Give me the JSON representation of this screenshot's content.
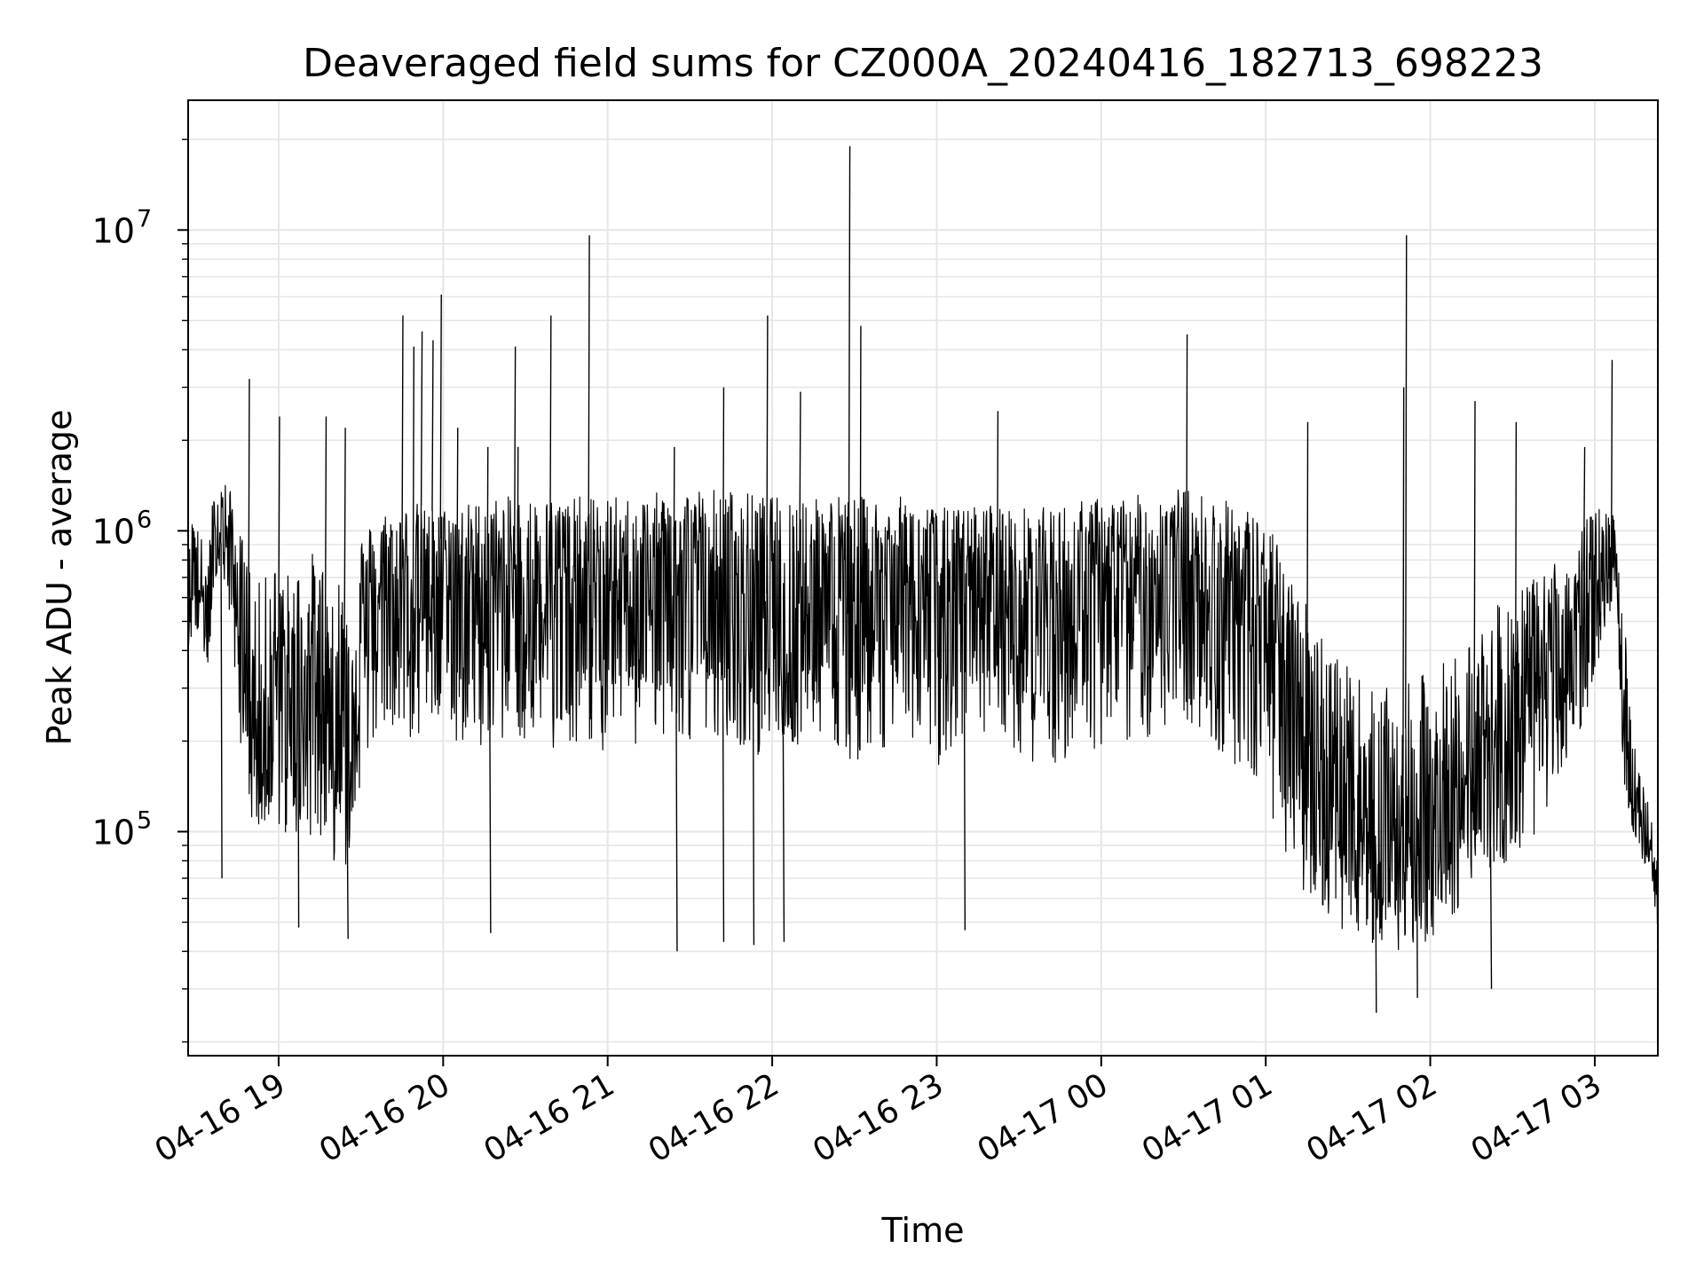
{
  "chart_data": {
    "type": "line",
    "title": "Deaveraged field sums for CZ000A_20240416_182713_698223",
    "xlabel": "Time",
    "ylabel": "Peak ADU - average",
    "x_range": [
      "2024-04-16T18:27",
      "2024-04-17T03:23"
    ],
    "ylim": [
      18000,
      27000000
    ],
    "y_scale": "log",
    "grid": true,
    "legend": "none",
    "line_color": "#000000",
    "x_ticks": [
      {
        "time": "2024-04-16T19:00",
        "label": "04-16 19"
      },
      {
        "time": "2024-04-16T20:00",
        "label": "04-16 20"
      },
      {
        "time": "2024-04-16T21:00",
        "label": "04-16 21"
      },
      {
        "time": "2024-04-16T22:00",
        "label": "04-16 22"
      },
      {
        "time": "2024-04-16T23:00",
        "label": "04-16 23"
      },
      {
        "time": "2024-04-17T00:00",
        "label": "04-17 00"
      },
      {
        "time": "2024-04-17T01:00",
        "label": "04-17 01"
      },
      {
        "time": "2024-04-17T02:00",
        "label": "04-17 02"
      },
      {
        "time": "2024-04-17T03:00",
        "label": "04-17 03"
      }
    ],
    "y_ticks": [
      {
        "value": 100000,
        "base": "10",
        "exp": "5"
      },
      {
        "value": 1000000,
        "base": "10",
        "exp": "6"
      },
      {
        "value": 10000000,
        "base": "10",
        "exp": "7"
      }
    ],
    "series": [
      {
        "x": [
          "2024-04-16T18:27",
          "2024-04-16T18:29",
          "2024-04-16T18:30",
          "2024-04-16T18:31",
          "2024-04-16T18:32",
          "2024-04-16T18:33",
          "2024-04-16T18:34",
          "2024-04-16T18:36",
          "2024-04-16T18:38",
          "2024-04-16T18:40",
          "2024-04-16T18:42",
          "2024-04-16T18:44",
          "2024-04-16T18:46",
          "2024-04-16T18:48",
          "2024-04-16T18:50",
          "2024-04-16T18:52",
          "2024-04-16T18:54",
          "2024-04-16T18:56",
          "2024-04-16T18:58",
          "2024-04-16T19:00",
          "2024-04-16T19:05",
          "2024-04-16T19:10",
          "2024-04-16T19:15",
          "2024-04-16T19:20",
          "2024-04-16T19:25",
          "2024-04-16T19:30",
          "2024-04-16T19:35",
          "2024-04-16T19:40",
          "2024-04-16T19:45",
          "2024-04-16T19:50",
          "2024-04-16T19:55",
          "2024-04-16T20:00",
          "2024-04-16T20:10",
          "2024-04-16T20:20",
          "2024-04-16T20:30",
          "2024-04-16T20:40",
          "2024-04-16T20:50",
          "2024-04-16T21:00",
          "2024-04-16T21:10",
          "2024-04-16T21:20",
          "2024-04-16T21:30",
          "2024-04-16T21:40",
          "2024-04-16T21:50",
          "2024-04-16T22:00",
          "2024-04-16T22:10",
          "2024-04-16T22:20",
          "2024-04-16T22:30",
          "2024-04-16T22:40",
          "2024-04-16T22:50",
          "2024-04-16T23:00",
          "2024-04-16T23:10",
          "2024-04-16T23:20",
          "2024-04-16T23:30",
          "2024-04-16T23:40",
          "2024-04-16T23:50",
          "2024-04-17T00:00",
          "2024-04-17T00:10",
          "2024-04-17T00:20",
          "2024-04-17T00:30",
          "2024-04-17T00:40",
          "2024-04-17T00:50",
          "2024-04-17T01:00",
          "2024-04-17T01:10",
          "2024-04-17T01:20",
          "2024-04-17T01:30",
          "2024-04-17T01:40",
          "2024-04-17T01:50",
          "2024-04-17T02:00",
          "2024-04-17T02:10",
          "2024-04-17T02:20",
          "2024-04-17T02:30",
          "2024-04-17T02:40",
          "2024-04-17T02:50",
          "2024-04-17T03:00",
          "2024-04-17T03:05",
          "2024-04-17T03:08",
          "2024-04-17T03:10",
          "2024-04-17T03:15",
          "2024-04-17T03:20",
          "2024-04-17T03:23"
        ],
        "y": [
          500000,
          900000,
          700000,
          650000,
          600000,
          550000,
          500000,
          800000,
          1000000,
          1100000,
          900000,
          700000,
          500000,
          400000,
          300000,
          250000,
          200000,
          300000,
          400000,
          350000,
          300000,
          400000,
          350000,
          300000,
          250000,
          500000,
          600000,
          700000,
          700000,
          750000,
          700000,
          700000,
          700000,
          700000,
          700000,
          700000,
          700000,
          650000,
          700000,
          700000,
          750000,
          700000,
          700000,
          650000,
          700000,
          700000,
          650000,
          700000,
          700000,
          650000,
          650000,
          700000,
          650000,
          650000,
          650000,
          700000,
          700000,
          750000,
          800000,
          700000,
          650000,
          550000,
          300000,
          200000,
          120000,
          100000,
          100000,
          110000,
          150000,
          200000,
          250000,
          300000,
          450000,
          600000,
          800000,
          900000,
          250000,
          120000,
          90000,
          60000
        ],
        "low": [
          350000,
          500000,
          450000,
          450000,
          400000,
          350000,
          300000,
          500000,
          600000,
          650000,
          500000,
          350000,
          200000,
          150000,
          100000,
          90000,
          80000,
          90000,
          100000,
          100000,
          90000,
          100000,
          90000,
          80000,
          75000,
          150000,
          200000,
          200000,
          200000,
          200000,
          200000,
          200000,
          190000,
          200000,
          200000,
          190000,
          200000,
          170000,
          190000,
          200000,
          200000,
          190000,
          190000,
          170000,
          190000,
          200000,
          170000,
          190000,
          200000,
          160000,
          170000,
          200000,
          170000,
          160000,
          170000,
          190000,
          190000,
          210000,
          240000,
          190000,
          160000,
          120000,
          70000,
          55000,
          45000,
          40000,
          40000,
          42000,
          55000,
          70000,
          80000,
          100000,
          160000,
          300000,
          500000,
          600000,
          150000,
          90000,
          70000,
          48000
        ],
        "high": [
          800000,
          1300000,
          1100000,
          1000000,
          950000,
          900000,
          850000,
          1300000,
          1500000,
          1500000,
          1400000,
          1200000,
          1000000,
          900000,
          800000,
          700000,
          650000,
          750000,
          800000,
          800000,
          700000,
          900000,
          800000,
          750000,
          700000,
          1000000,
          1100000,
          1200000,
          1200000,
          1250000,
          1200000,
          1200000,
          1250000,
          1300000,
          1300000,
          1300000,
          1300000,
          1300000,
          1300000,
          1350000,
          1400000,
          1400000,
          1350000,
          1300000,
          1350000,
          1350000,
          1300000,
          1300000,
          1300000,
          1200000,
          1200000,
          1250000,
          1200000,
          1200000,
          1250000,
          1300000,
          1300000,
          1350000,
          1400000,
          1300000,
          1250000,
          1100000,
          700000,
          500000,
          350000,
          300000,
          300000,
          350000,
          400000,
          500000,
          650000,
          700000,
          900000,
          1200000,
          1200000,
          1250000,
          600000,
          180000,
          120000,
          80000
        ]
      }
    ],
    "peaks": [
      {
        "x": "2024-04-16T18:49",
        "y": 3200000
      },
      {
        "x": "2024-04-16T19:00",
        "y": 2400000
      },
      {
        "x": "2024-04-16T19:17",
        "y": 2400000
      },
      {
        "x": "2024-04-16T19:24",
        "y": 2200000
      },
      {
        "x": "2024-04-16T19:45",
        "y": 5200000
      },
      {
        "x": "2024-04-16T19:49",
        "y": 4100000
      },
      {
        "x": "2024-04-16T19:52",
        "y": 4600000
      },
      {
        "x": "2024-04-16T19:56",
        "y": 4300000
      },
      {
        "x": "2024-04-16T19:59",
        "y": 6100000
      },
      {
        "x": "2024-04-16T20:05",
        "y": 2200000
      },
      {
        "x": "2024-04-16T20:16",
        "y": 1900000
      },
      {
        "x": "2024-04-16T20:27",
        "y": 1900000
      },
      {
        "x": "2024-04-16T20:26",
        "y": 4100000
      },
      {
        "x": "2024-04-16T20:39",
        "y": 5200000
      },
      {
        "x": "2024-04-16T20:53",
        "y": 9600000
      },
      {
        "x": "2024-04-16T21:24",
        "y": 1900000
      },
      {
        "x": "2024-04-16T21:42",
        "y": 3000000
      },
      {
        "x": "2024-04-16T21:58",
        "y": 5200000
      },
      {
        "x": "2024-04-16T22:10",
        "y": 2900000
      },
      {
        "x": "2024-04-16T22:28",
        "y": 19000000
      },
      {
        "x": "2024-04-16T22:32",
        "y": 4800000
      },
      {
        "x": "2024-04-16T23:22",
        "y": 2500000
      },
      {
        "x": "2024-04-17T00:31",
        "y": 4500000
      },
      {
        "x": "2024-04-17T01:15",
        "y": 2300000
      },
      {
        "x": "2024-04-17T01:51",
        "y": 9600000
      },
      {
        "x": "2024-04-17T01:50",
        "y": 3000000
      },
      {
        "x": "2024-04-17T02:16",
        "y": 2700000
      },
      {
        "x": "2024-04-17T02:31",
        "y": 2300000
      },
      {
        "x": "2024-04-17T02:56",
        "y": 1900000
      },
      {
        "x": "2024-04-17T03:06",
        "y": 3700000
      }
    ],
    "dips": [
      {
        "x": "2024-04-16T18:39",
        "y": 70000
      },
      {
        "x": "2024-04-16T19:07",
        "y": 48000
      },
      {
        "x": "2024-04-16T19:25",
        "y": 44000
      },
      {
        "x": "2024-04-16T20:17",
        "y": 46000
      },
      {
        "x": "2024-04-16T21:25",
        "y": 40000
      },
      {
        "x": "2024-04-16T21:42",
        "y": 43000
      },
      {
        "x": "2024-04-16T21:53",
        "y": 42000
      },
      {
        "x": "2024-04-16T22:04",
        "y": 43000
      },
      {
        "x": "2024-04-16T23:10",
        "y": 47000
      },
      {
        "x": "2024-04-17T01:40",
        "y": 25000
      },
      {
        "x": "2024-04-17T01:55",
        "y": 28000
      },
      {
        "x": "2024-04-17T02:22",
        "y": 30000
      }
    ]
  }
}
